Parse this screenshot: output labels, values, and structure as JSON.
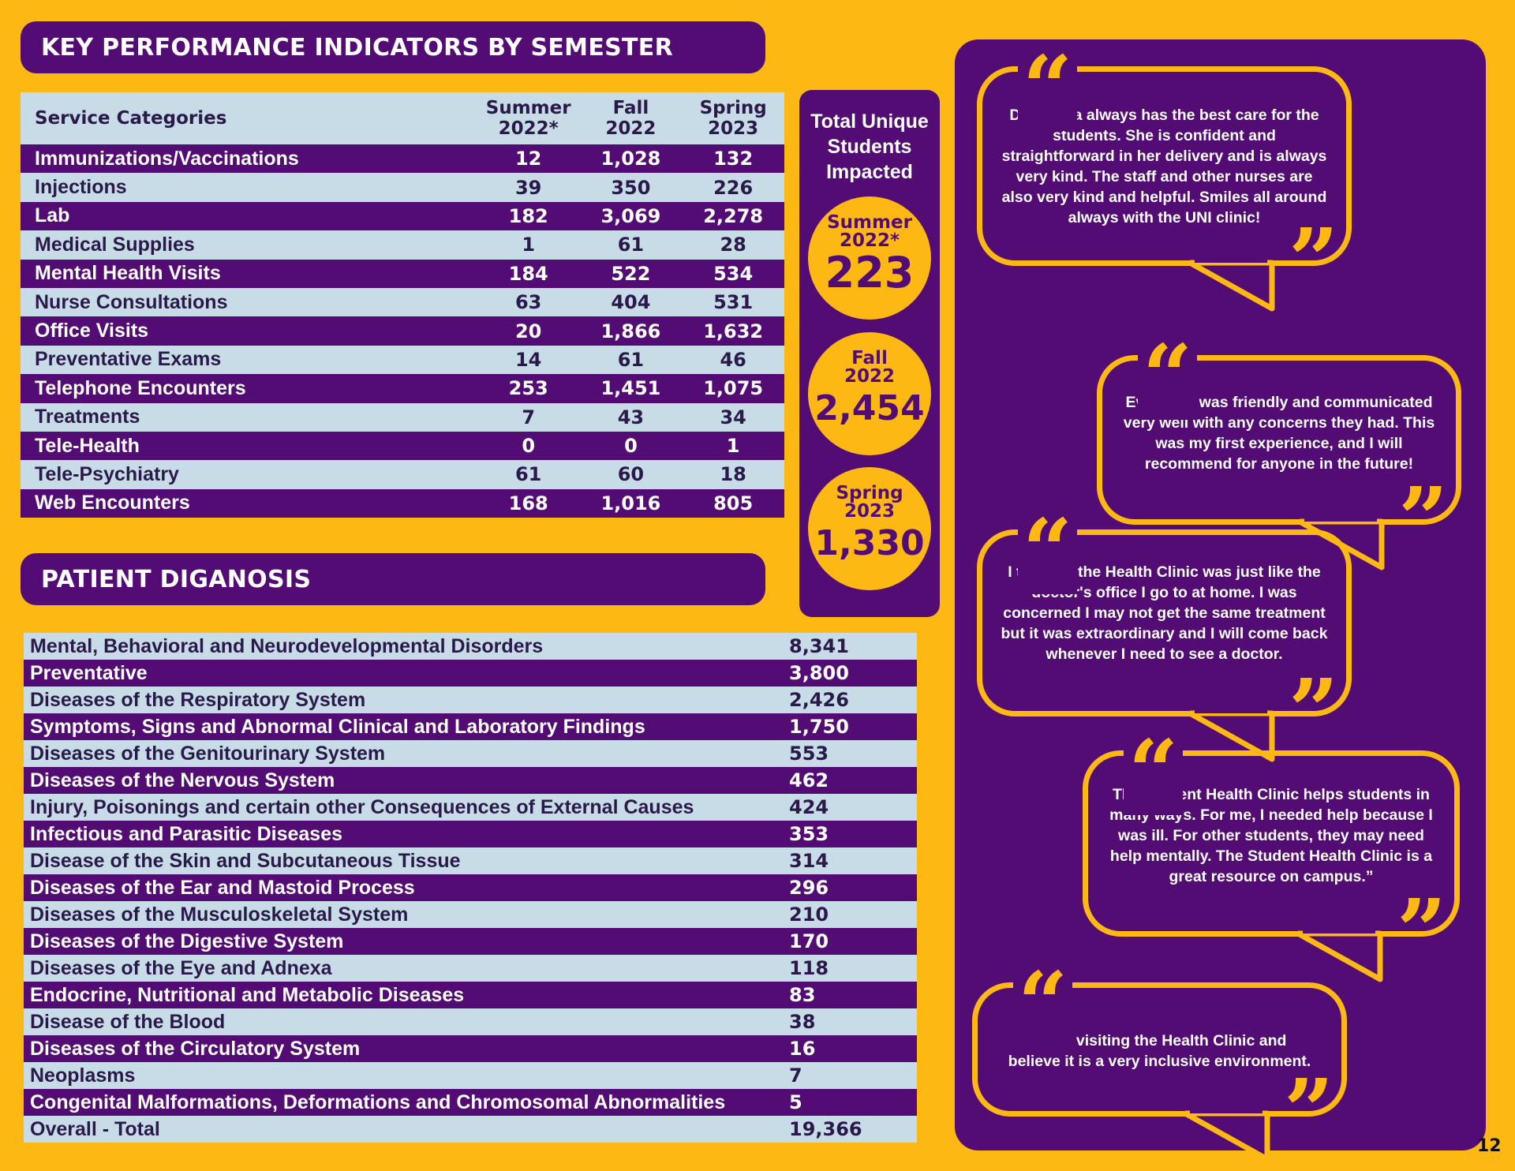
{
  "kpi": {
    "title": "KEY PERFORMANCE INDICATORS BY SEMESTER",
    "header": {
      "category": "Service Categories",
      "col1": "Summer 2022*",
      "col2": "Fall 2022",
      "col3": "Spring 2023"
    },
    "rows": [
      {
        "category": "Immunizations/Vaccinations",
        "summer": "12",
        "fall": "1,028",
        "spring": "132"
      },
      {
        "category": "Injections",
        "summer": "39",
        "fall": "350",
        "spring": "226"
      },
      {
        "category": "Lab",
        "summer": "182",
        "fall": "3,069",
        "spring": "2,278"
      },
      {
        "category": "Medical Supplies",
        "summer": "1",
        "fall": "61",
        "spring": "28"
      },
      {
        "category": "Mental Health Visits",
        "summer": "184",
        "fall": "522",
        "spring": "534"
      },
      {
        "category": "Nurse Consultations",
        "summer": "63",
        "fall": "404",
        "spring": "531"
      },
      {
        "category": "Office Visits",
        "summer": "20",
        "fall": "1,866",
        "spring": "1,632"
      },
      {
        "category": "Preventative Exams",
        "summer": "14",
        "fall": "61",
        "spring": "46"
      },
      {
        "category": "Telephone Encounters",
        "summer": "253",
        "fall": "1,451",
        "spring": "1,075"
      },
      {
        "category": "Treatments",
        "summer": "7",
        "fall": "43",
        "spring": "34"
      },
      {
        "category": "Tele-Health",
        "summer": "0",
        "fall": "0",
        "spring": "1"
      },
      {
        "category": "Tele-Psychiatry",
        "summer": "61",
        "fall": "60",
        "spring": "18"
      },
      {
        "category": "Web Encounters",
        "summer": "168",
        "fall": "1,016",
        "spring": "805"
      }
    ]
  },
  "totals": {
    "title": "Total Unique Students Impacted",
    "items": [
      {
        "label": "Summer 2022*",
        "value": "223"
      },
      {
        "label": "Fall 2022",
        "value": "2,454"
      },
      {
        "label": "Spring 2023",
        "value": "1,330"
      }
    ]
  },
  "diagnosis": {
    "title": "PATIENT DIGANOSIS",
    "rows": [
      {
        "name": "Mental, Behavioral and Neurodevelopmental Disorders",
        "value": "8,341"
      },
      {
        "name": "Preventative",
        "value": "3,800"
      },
      {
        "name": "Diseases of the Respiratory System",
        "value": "2,426"
      },
      {
        "name": "Symptoms, Signs and Abnormal Clinical and Laboratory Findings",
        "value": "1,750"
      },
      {
        "name": "Diseases of the Genitourinary System",
        "value": "553"
      },
      {
        "name": "Diseases of the Nervous System",
        "value": "462"
      },
      {
        "name": "Injury, Poisonings and certain other Consequences of External Causes",
        "value": "424"
      },
      {
        "name": "Infectious and Parasitic Diseases",
        "value": "353"
      },
      {
        "name": "Disease of the Skin and Subcutaneous Tissue",
        "value": "314"
      },
      {
        "name": "Diseases of the Ear and Mastoid Process",
        "value": "296"
      },
      {
        "name": "Diseases of the Musculoskeletal System",
        "value": "210"
      },
      {
        "name": "Diseases of the Digestive System",
        "value": "170"
      },
      {
        "name": "Diseases of the Eye and Adnexa",
        "value": "118"
      },
      {
        "name": "Endocrine, Nutritional and Metabolic Diseases",
        "value": "83"
      },
      {
        "name": "Disease of the Blood",
        "value": "38"
      },
      {
        "name": "Diseases of the Circulatory System",
        "value": "16"
      },
      {
        "name": "Neoplasms",
        "value": "7"
      },
      {
        "name": "Congenital Malformations, Deformations and Chromosomal Abnormalities",
        "value": "5"
      },
      {
        "name": "Overall - Total",
        "value": "19,366"
      }
    ]
  },
  "testimonials": [
    {
      "lines": [
        "Dr. Ochoa always has the best care for the",
        "students. She is confident and",
        "straightforward in her delivery and is always",
        "very kind. The staff and other nurses are",
        "also very kind and helpful. Smiles all around",
        "always with the UNI clinic!"
      ]
    },
    {
      "lines": [
        "Everyone was friendly and communicated",
        "very well with any concerns they had. This",
        "was my first experience, and I will",
        "recommend for anyone in the future!"
      ]
    },
    {
      "lines": [
        "I thought the Health Clinic was just like the",
        "doctor's office I go to at home. I was",
        "concerned I may not get the same treatment",
        "but it was extraordinary and I will come back",
        "whenever I need to see a doctor."
      ]
    },
    {
      "lines": [
        "The Student Health Clinic helps students in",
        "many ways. For me, I needed help because I",
        "was ill. For other students, they may need",
        "help mentally. The Student Health Clinic is a",
        "great resource on campus.”"
      ]
    },
    {
      "lines": [
        "I love visiting the Health Clinic and",
        "believe it is a very inclusive environment."
      ]
    }
  ],
  "page_number": "12",
  "colors": {
    "accent": "#FDB813",
    "brand_purple": "#520C73",
    "light_row": "#C8DCE8"
  },
  "icons": {
    "open_quote": "open-quote-icon",
    "close_quote": "close-quote-icon"
  }
}
